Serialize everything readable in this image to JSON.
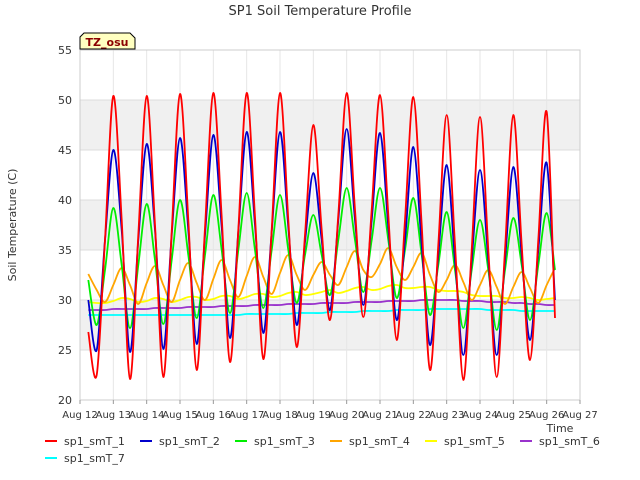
{
  "chart_data": {
    "type": "line",
    "title": "SP1 Soil Temperature Profile",
    "xlabel": "Time",
    "ylabel": "Soil Temperature (C)",
    "ylim": [
      20,
      55
    ],
    "yticks": [
      20,
      25,
      30,
      35,
      40,
      45,
      50,
      55
    ],
    "xlim": [
      12,
      27
    ],
    "xticks": [
      {
        "v": 12,
        "label": "Aug 12"
      },
      {
        "v": 13,
        "label": "Aug 13"
      },
      {
        "v": 14,
        "label": "Aug 14"
      },
      {
        "v": 15,
        "label": "Aug 15"
      },
      {
        "v": 16,
        "label": "Aug 16"
      },
      {
        "v": 17,
        "label": "Aug 17"
      },
      {
        "v": 18,
        "label": "Aug 18"
      },
      {
        "v": 19,
        "label": "Aug 19"
      },
      {
        "v": 20,
        "label": "Aug 20"
      },
      {
        "v": 21,
        "label": "Aug 21"
      },
      {
        "v": 22,
        "label": "Aug 22"
      },
      {
        "v": 23,
        "label": "Aug 23"
      },
      {
        "v": 24,
        "label": "Aug 24"
      },
      {
        "v": 25,
        "label": "Aug 25"
      },
      {
        "v": 26,
        "label": "Aug 26"
      },
      {
        "v": 27,
        "label": "Aug 27"
      }
    ],
    "grid": true,
    "legend_position": "bottom",
    "annotation": "TZ_osu",
    "x": [
      12.25,
      12.5,
      12.75,
      13.0,
      13.25,
      13.5,
      13.75,
      14.0,
      14.25,
      14.5,
      14.75,
      15.0,
      15.25,
      15.5,
      15.75,
      16.0,
      16.25,
      16.5,
      16.75,
      17.0,
      17.25,
      17.5,
      17.75,
      18.0,
      18.25,
      18.5,
      18.75,
      19.0,
      19.25,
      19.5,
      19.75,
      20.0,
      20.25,
      20.5,
      20.75,
      21.0,
      21.25,
      21.5,
      21.75,
      22.0,
      22.25,
      22.5,
      22.75,
      23.0,
      23.25,
      23.5,
      23.75,
      24.0,
      24.25,
      24.5,
      24.75,
      25.0,
      25.25,
      25.5,
      25.75,
      26.0,
      26.25
    ],
    "series": [
      {
        "name": "sp1_smT_1",
        "color": "#ff0000",
        "values": [
          26.8,
          22.5,
          36.0,
          50.4,
          38.0,
          22.1,
          36.5,
          50.4,
          37.5,
          22.3,
          36.8,
          50.6,
          38.0,
          23.0,
          37.2,
          50.7,
          38.3,
          23.8,
          37.0,
          50.7,
          38.3,
          24.1,
          37.0,
          50.7,
          38.0,
          25.3,
          36.5,
          47.5,
          37.0,
          28.0,
          38.5,
          50.7,
          39.0,
          28.3,
          39.0,
          50.5,
          38.5,
          26.0,
          38.0,
          50.3,
          37.5,
          23.0,
          35.5,
          48.5,
          35.5,
          22.0,
          35.0,
          48.3,
          35.0,
          22.3,
          35.0,
          48.5,
          35.5,
          24.0,
          36.0,
          48.8,
          28.2
        ]
      },
      {
        "name": "sp1_smT_2",
        "color": "#0000cc",
        "values": [
          30.0,
          25.0,
          36.0,
          45.0,
          37.0,
          24.8,
          36.0,
          45.6,
          37.0,
          25.1,
          36.5,
          46.2,
          37.0,
          25.6,
          36.5,
          46.5,
          37.3,
          26.2,
          36.8,
          46.8,
          37.5,
          26.7,
          36.8,
          46.8,
          37.3,
          27.5,
          35.8,
          42.7,
          36.0,
          29.0,
          38.0,
          47.1,
          38.0,
          29.5,
          38.0,
          46.7,
          37.3,
          28.0,
          36.0,
          45.3,
          35.5,
          25.5,
          34.5,
          43.5,
          34.0,
          24.5,
          34.0,
          43.0,
          34.0,
          24.5,
          34.0,
          43.3,
          34.5,
          26.0,
          35.0,
          43.7,
          30.0
        ]
      },
      {
        "name": "sp1_smT_3",
        "color": "#00ee00",
        "values": [
          32.0,
          27.5,
          33.0,
          39.2,
          33.5,
          27.2,
          33.5,
          39.6,
          34.0,
          27.6,
          34.0,
          40.0,
          34.5,
          28.2,
          34.5,
          40.5,
          35.0,
          28.7,
          35.0,
          40.7,
          35.0,
          29.2,
          35.0,
          40.5,
          35.0,
          29.7,
          34.5,
          38.5,
          34.5,
          30.5,
          36.0,
          41.2,
          36.0,
          30.8,
          36.0,
          41.2,
          36.0,
          30.2,
          35.0,
          40.2,
          34.5,
          28.5,
          33.5,
          38.8,
          33.0,
          27.2,
          33.0,
          38.0,
          33.0,
          27.0,
          33.0,
          38.2,
          33.5,
          28.0,
          33.5,
          38.7,
          33.0
        ]
      },
      {
        "name": "sp1_smT_4",
        "color": "#ffa500",
        "values": [
          32.6,
          31.0,
          29.8,
          31.5,
          33.2,
          31.5,
          29.6,
          31.7,
          33.4,
          31.5,
          29.8,
          32.0,
          33.7,
          31.7,
          30.0,
          32.1,
          34.0,
          32.0,
          30.3,
          32.4,
          34.3,
          32.3,
          30.6,
          32.7,
          34.5,
          32.5,
          31.0,
          32.5,
          33.8,
          32.5,
          31.5,
          33.3,
          34.9,
          33.0,
          32.3,
          33.6,
          35.2,
          33.3,
          32.0,
          33.3,
          34.7,
          32.5,
          30.8,
          32.0,
          33.5,
          31.8,
          30.0,
          31.5,
          33.0,
          31.3,
          29.6,
          31.3,
          32.8,
          31.2,
          29.7,
          31.5,
          33.2
        ]
      },
      {
        "name": "sp1_smT_5",
        "color": "#ffff00",
        "values": [
          29.8,
          29.7,
          29.7,
          29.9,
          30.2,
          30.1,
          29.8,
          29.9,
          30.2,
          30.1,
          29.8,
          30.0,
          30.3,
          30.3,
          30.0,
          30.1,
          30.4,
          30.4,
          30.1,
          30.3,
          30.6,
          30.6,
          30.3,
          30.4,
          30.7,
          30.8,
          30.5,
          30.6,
          30.8,
          31.0,
          30.7,
          30.9,
          31.2,
          31.3,
          31.0,
          31.1,
          31.4,
          31.5,
          31.2,
          31.2,
          31.3,
          31.3,
          31.0,
          30.9,
          30.9,
          30.8,
          30.5,
          30.4,
          30.4,
          30.4,
          30.2,
          30.2,
          30.3,
          30.2,
          30.0,
          30.1,
          30.2
        ]
      },
      {
        "name": "sp1_smT_6",
        "color": "#9932cc",
        "values": [
          29.0,
          29.0,
          29.0,
          29.1,
          29.1,
          29.1,
          29.1,
          29.1,
          29.2,
          29.2,
          29.2,
          29.2,
          29.3,
          29.3,
          29.3,
          29.3,
          29.4,
          29.4,
          29.4,
          29.4,
          29.5,
          29.5,
          29.5,
          29.5,
          29.6,
          29.6,
          29.6,
          29.6,
          29.7,
          29.7,
          29.7,
          29.7,
          29.8,
          29.8,
          29.8,
          29.8,
          29.9,
          29.9,
          29.9,
          29.9,
          30.0,
          30.0,
          30.0,
          30.0,
          30.0,
          29.9,
          29.9,
          29.9,
          29.8,
          29.8,
          29.8,
          29.7,
          29.7,
          29.6,
          29.6,
          29.5,
          29.5
        ]
      },
      {
        "name": "sp1_smT_7",
        "color": "#00ffff",
        "values": [
          28.5,
          28.5,
          28.5,
          28.5,
          28.5,
          28.5,
          28.5,
          28.5,
          28.5,
          28.5,
          28.5,
          28.5,
          28.5,
          28.5,
          28.5,
          28.5,
          28.5,
          28.5,
          28.5,
          28.6,
          28.6,
          28.6,
          28.6,
          28.6,
          28.6,
          28.7,
          28.7,
          28.7,
          28.7,
          28.8,
          28.8,
          28.8,
          28.8,
          28.9,
          28.9,
          28.9,
          28.9,
          29.0,
          29.0,
          29.0,
          29.0,
          29.1,
          29.1,
          29.1,
          29.1,
          29.1,
          29.1,
          29.1,
          29.0,
          29.0,
          29.0,
          29.0,
          28.9,
          28.9,
          28.9,
          28.9,
          28.9
        ]
      }
    ]
  }
}
